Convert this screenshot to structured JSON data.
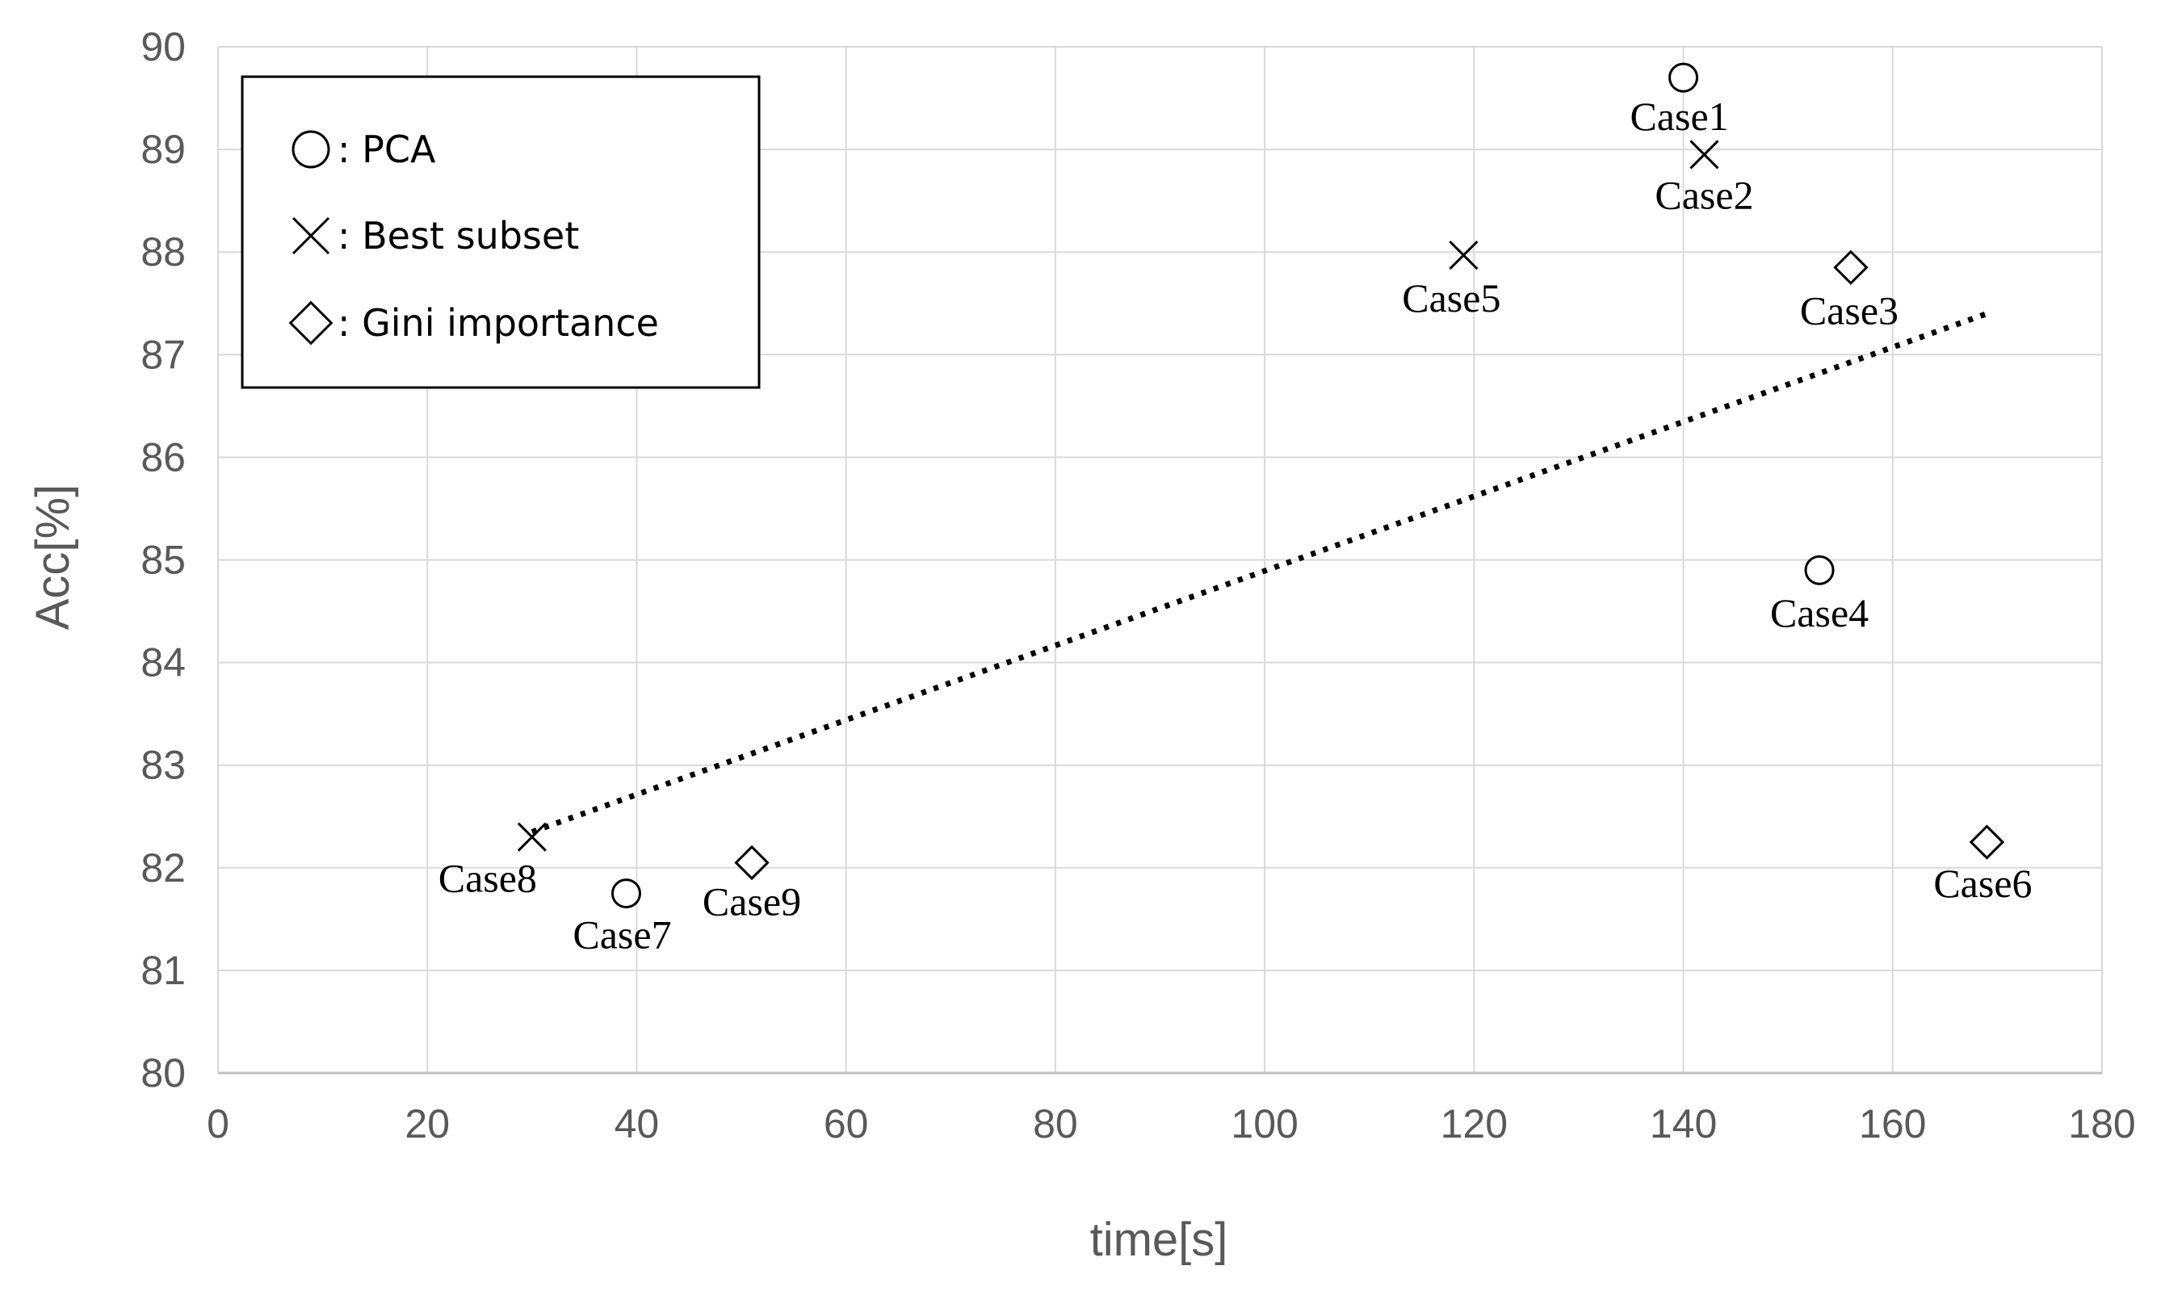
{
  "chart_data": {
    "type": "scatter",
    "xlabel": "time[s]",
    "ylabel": "Acc[%]",
    "xlim": [
      0,
      180
    ],
    "ylim": [
      80,
      90
    ],
    "x_ticks": [
      "0",
      "20",
      "40",
      "60",
      "80",
      "100",
      "120",
      "140",
      "160",
      "180"
    ],
    "y_ticks": [
      "80",
      "81",
      "82",
      "83",
      "84",
      "85",
      "86",
      "87",
      "88",
      "89",
      "90"
    ],
    "grid": true,
    "legend_position": "top-left",
    "legend": [
      {
        "marker": "circle",
        "label": ": PCA"
      },
      {
        "marker": "x",
        "label": ": Best subset"
      },
      {
        "marker": "diamond",
        "label": ": Gini importance"
      }
    ],
    "points": [
      {
        "label": "Case1",
        "x": 140,
        "y": 89.7,
        "marker": "circle"
      },
      {
        "label": "Case2",
        "x": 142,
        "y": 88.95,
        "marker": "x"
      },
      {
        "label": "Case3",
        "x": 156,
        "y": 87.85,
        "marker": "diamond"
      },
      {
        "label": "Case4",
        "x": 153,
        "y": 84.9,
        "marker": "circle"
      },
      {
        "label": "Case5",
        "x": 119,
        "y": 87.97,
        "marker": "x"
      },
      {
        "label": "Case6",
        "x": 169,
        "y": 82.25,
        "marker": "diamond"
      },
      {
        "label": "Case7",
        "x": 39,
        "y": 81.75,
        "marker": "circle"
      },
      {
        "label": "Case8",
        "x": 30,
        "y": 82.3,
        "marker": "x"
      },
      {
        "label": "Case9",
        "x": 51,
        "y": 82.05,
        "marker": "diamond"
      }
    ],
    "trendline": {
      "style": "dotted",
      "x": [
        30,
        169
      ],
      "y": [
        82.35,
        87.4
      ]
    }
  }
}
